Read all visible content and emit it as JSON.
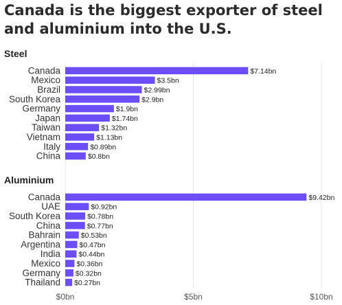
{
  "chart_data": {
    "type": "bar",
    "orientation": "horizontal",
    "title": "Canada is the biggest exporter of steel and aluminium into the U.S.",
    "bar_color": "#6c4df6",
    "grid": true,
    "xlim": [
      0,
      10.5
    ],
    "x_ticks": [
      {
        "value": 0,
        "label": "$0bn"
      },
      {
        "value": 5,
        "label": "$5bn"
      },
      {
        "value": 10,
        "label": "$10bn"
      }
    ],
    "panels": [
      {
        "title": "Steel",
        "categories": [
          "Canada",
          "Mexico",
          "Brazil",
          "South Korea",
          "Germany",
          "Japan",
          "Taiwan",
          "Vietnam",
          "Italy",
          "China"
        ],
        "values": [
          7.14,
          3.5,
          2.99,
          2.9,
          1.9,
          1.74,
          1.32,
          1.13,
          0.89,
          0.8
        ],
        "labels": [
          "$7.14bn",
          "$3.5bn",
          "$2.99bn",
          "$2.9bn",
          "$1.9bn",
          "$1.74bn",
          "$1.32bn",
          "$1.13bn",
          "$0.89bn",
          "$0.8bn"
        ]
      },
      {
        "title": "Aluminium",
        "categories": [
          "Canada",
          "UAE",
          "South Korea",
          "China",
          "Bahrain",
          "Argentina",
          "India",
          "Mexico",
          "Germany",
          "Thailand"
        ],
        "values": [
          9.42,
          0.92,
          0.78,
          0.77,
          0.53,
          0.47,
          0.44,
          0.36,
          0.32,
          0.27
        ],
        "labels": [
          "$9.42bn",
          "$0.92bn",
          "$0.78bn",
          "$0.77bn",
          "$0.53bn",
          "$0.47bn",
          "$0.44bn",
          "$0.36bn",
          "$0.32bn",
          "$0.27bn"
        ]
      }
    ]
  }
}
